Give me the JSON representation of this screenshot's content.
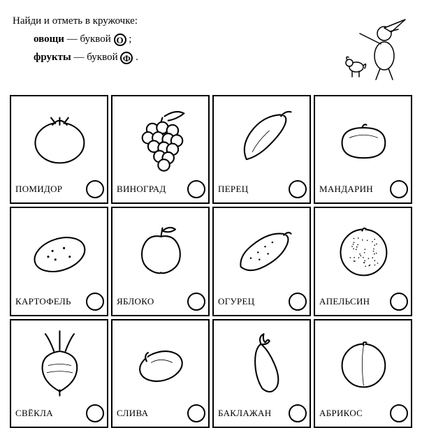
{
  "instructions": {
    "line1": "Найди и отметь в кружочке:",
    "vegetables_word": "овощи",
    "dash_letter": " — буквой ",
    "veg_mark": "О",
    "semicolon": " ;",
    "fruits_word": "фрукты",
    "fruit_mark": "Ф",
    "period": " ."
  },
  "grid": {
    "columns": 4,
    "rows": 3,
    "cell_border_color": "#000000",
    "background_color": "#ffffff",
    "label_fontsize": 13,
    "circle_diameter": 26,
    "items": [
      {
        "label": "ПОМИДОР",
        "icon": "tomato"
      },
      {
        "label": "ВИНОГРАД",
        "icon": "grapes"
      },
      {
        "label": "ПЕРЕЦ",
        "icon": "pepper"
      },
      {
        "label": "МАНДАРИН",
        "icon": "mandarin"
      },
      {
        "label": "КАРТОФЕЛЬ",
        "icon": "potato"
      },
      {
        "label": "ЯБЛОКО",
        "icon": "apple"
      },
      {
        "label": "ОГУРЕЦ",
        "icon": "cucumber"
      },
      {
        "label": "АПЕЛЬСИН",
        "icon": "orange"
      },
      {
        "label": "СВЁКЛА",
        "icon": "beet"
      },
      {
        "label": "СЛИВА",
        "icon": "plum"
      },
      {
        "label": "БАКЛАЖАН",
        "icon": "eggplant"
      },
      {
        "label": "АБРИКОС",
        "icon": "apricot"
      }
    ]
  },
  "style": {
    "stroke": "#000000",
    "fill": "#ffffff",
    "stroke_width": 2
  }
}
